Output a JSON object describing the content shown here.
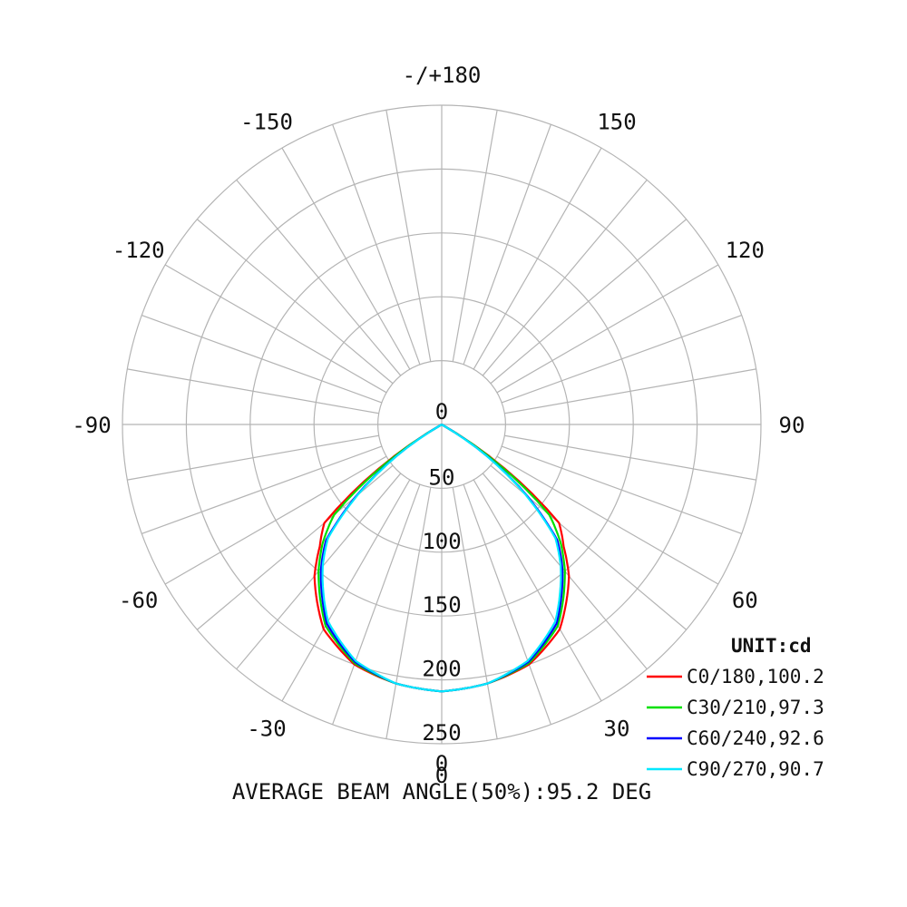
{
  "chart_data": {
    "type": "polar",
    "unit_label": "UNIT:cd",
    "footer": "AVERAGE BEAM ANGLE(50%):95.2 DEG",
    "angle_ticks": [
      {
        "deg": 0,
        "label": "0"
      },
      {
        "deg": 30,
        "label": "30"
      },
      {
        "deg": 60,
        "label": "60"
      },
      {
        "deg": 90,
        "label": "90"
      },
      {
        "deg": 120,
        "label": "120"
      },
      {
        "deg": 150,
        "label": "150"
      },
      {
        "deg": 180,
        "label": "-/+180"
      },
      {
        "deg": -150,
        "label": "-150"
      },
      {
        "deg": -120,
        "label": "-120"
      },
      {
        "deg": -90,
        "label": "-90"
      },
      {
        "deg": -60,
        "label": "-60"
      },
      {
        "deg": -30,
        "label": "-30"
      }
    ],
    "radial_ticks": [
      {
        "value": 0,
        "label": "0"
      },
      {
        "value": 50,
        "label": "50"
      },
      {
        "value": 100,
        "label": "100"
      },
      {
        "value": 150,
        "label": "150"
      },
      {
        "value": 200,
        "label": "200"
      },
      {
        "value": 250,
        "label": "250"
      }
    ],
    "r_max": 250,
    "grid_step_deg": 10,
    "series": [
      {
        "name": "C0/180,100.2",
        "color": "#ff0000",
        "angles": [
          -90,
          -80,
          -70,
          -60,
          -50,
          -45,
          -40,
          -30,
          -20,
          -10,
          0,
          10,
          20,
          30,
          40,
          45,
          50,
          60,
          70,
          80,
          90
        ],
        "values": [
          0,
          0,
          0,
          0,
          120,
          135,
          155,
          185,
          200,
          206,
          209,
          206,
          200,
          185,
          155,
          135,
          120,
          0,
          0,
          0,
          0
        ]
      },
      {
        "name": "C30/210,97.3",
        "color": "#00e000",
        "angles": [
          -90,
          -80,
          -70,
          -60,
          -50,
          -45,
          -40,
          -30,
          -20,
          -10,
          0,
          10,
          20,
          30,
          40,
          45,
          50,
          60,
          70,
          80,
          90
        ],
        "values": [
          0,
          0,
          0,
          0,
          110,
          132,
          150,
          182,
          199,
          206,
          209,
          206,
          199,
          182,
          150,
          132,
          110,
          0,
          0,
          0,
          0
        ]
      },
      {
        "name": "C60/240,92.6",
        "color": "#0000ff",
        "angles": [
          -90,
          -80,
          -70,
          -60,
          -50,
          -45,
          -40,
          -30,
          -20,
          -10,
          0,
          10,
          20,
          30,
          40,
          45,
          50,
          60,
          70,
          80,
          90
        ],
        "values": [
          0,
          0,
          0,
          0,
          88,
          128,
          147,
          180,
          198,
          206,
          209,
          206,
          198,
          180,
          147,
          128,
          88,
          0,
          0,
          0,
          0
        ]
      },
      {
        "name": "C90/270,90.7",
        "color": "#00e8ff",
        "angles": [
          -90,
          -80,
          -70,
          -60,
          -50,
          -45,
          -40,
          -30,
          -20,
          -10,
          0,
          10,
          20,
          30,
          40,
          45,
          50,
          60,
          70,
          80,
          90
        ],
        "values": [
          0,
          0,
          0,
          0,
          86,
          126,
          145,
          178,
          197,
          206,
          209,
          206,
          197,
          178,
          145,
          126,
          86,
          0,
          0,
          0,
          0
        ]
      }
    ]
  }
}
